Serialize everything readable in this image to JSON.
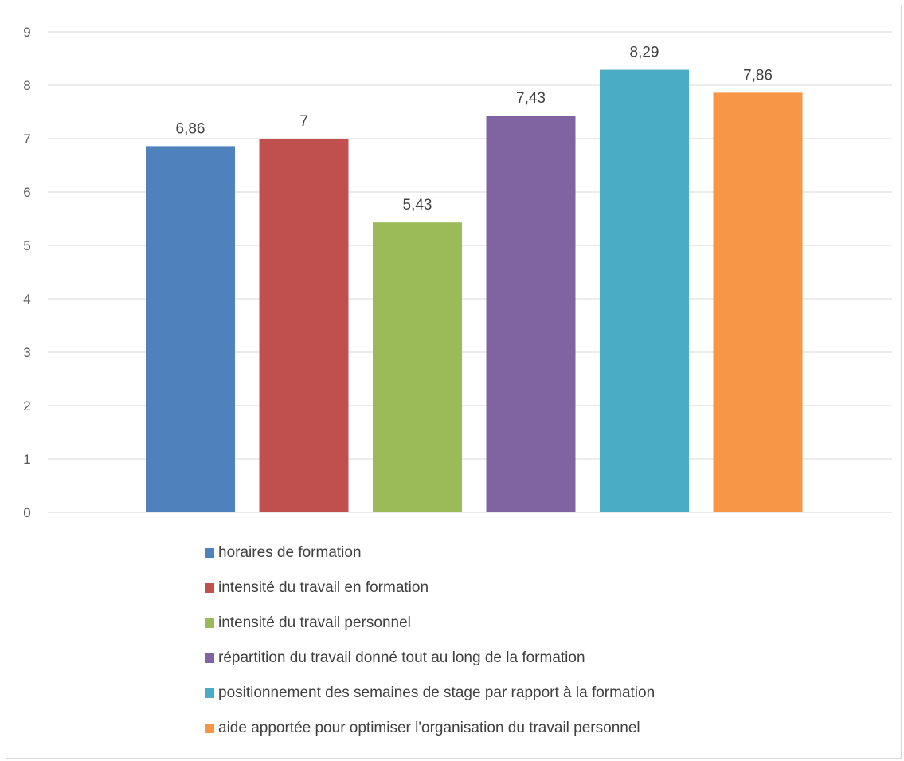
{
  "chart_data": {
    "type": "bar",
    "title": "",
    "xlabel": "",
    "ylabel": "",
    "ylim": [
      0,
      9
    ],
    "yticks": [
      "0",
      "1",
      "2",
      "3",
      "4",
      "5",
      "6",
      "7",
      "8",
      "9"
    ],
    "grid": true,
    "legend_position": "bottom",
    "series": [
      {
        "name": "horaires de formation",
        "value": 6.86,
        "label": "6,86",
        "color": "#4F81BD"
      },
      {
        "name": "intensité du travail en formation",
        "value": 7,
        "label": "7",
        "color": "#C0504D"
      },
      {
        "name": "intensité du travail personnel",
        "value": 5.43,
        "label": "5,43",
        "color": "#9BBB59"
      },
      {
        "name": "répartition du travail donné tout au long de la formation",
        "value": 7.43,
        "label": "7,43",
        "color": "#8064A2"
      },
      {
        "name": "positionnement des semaines de stage par rapport à la formation",
        "value": 8.29,
        "label": "8,29",
        "color": "#4BACC6"
      },
      {
        "name": "aide apportée pour optimiser l'organisation du travail personnel",
        "value": 7.86,
        "label": "7,86",
        "color": "#F79646"
      }
    ]
  }
}
